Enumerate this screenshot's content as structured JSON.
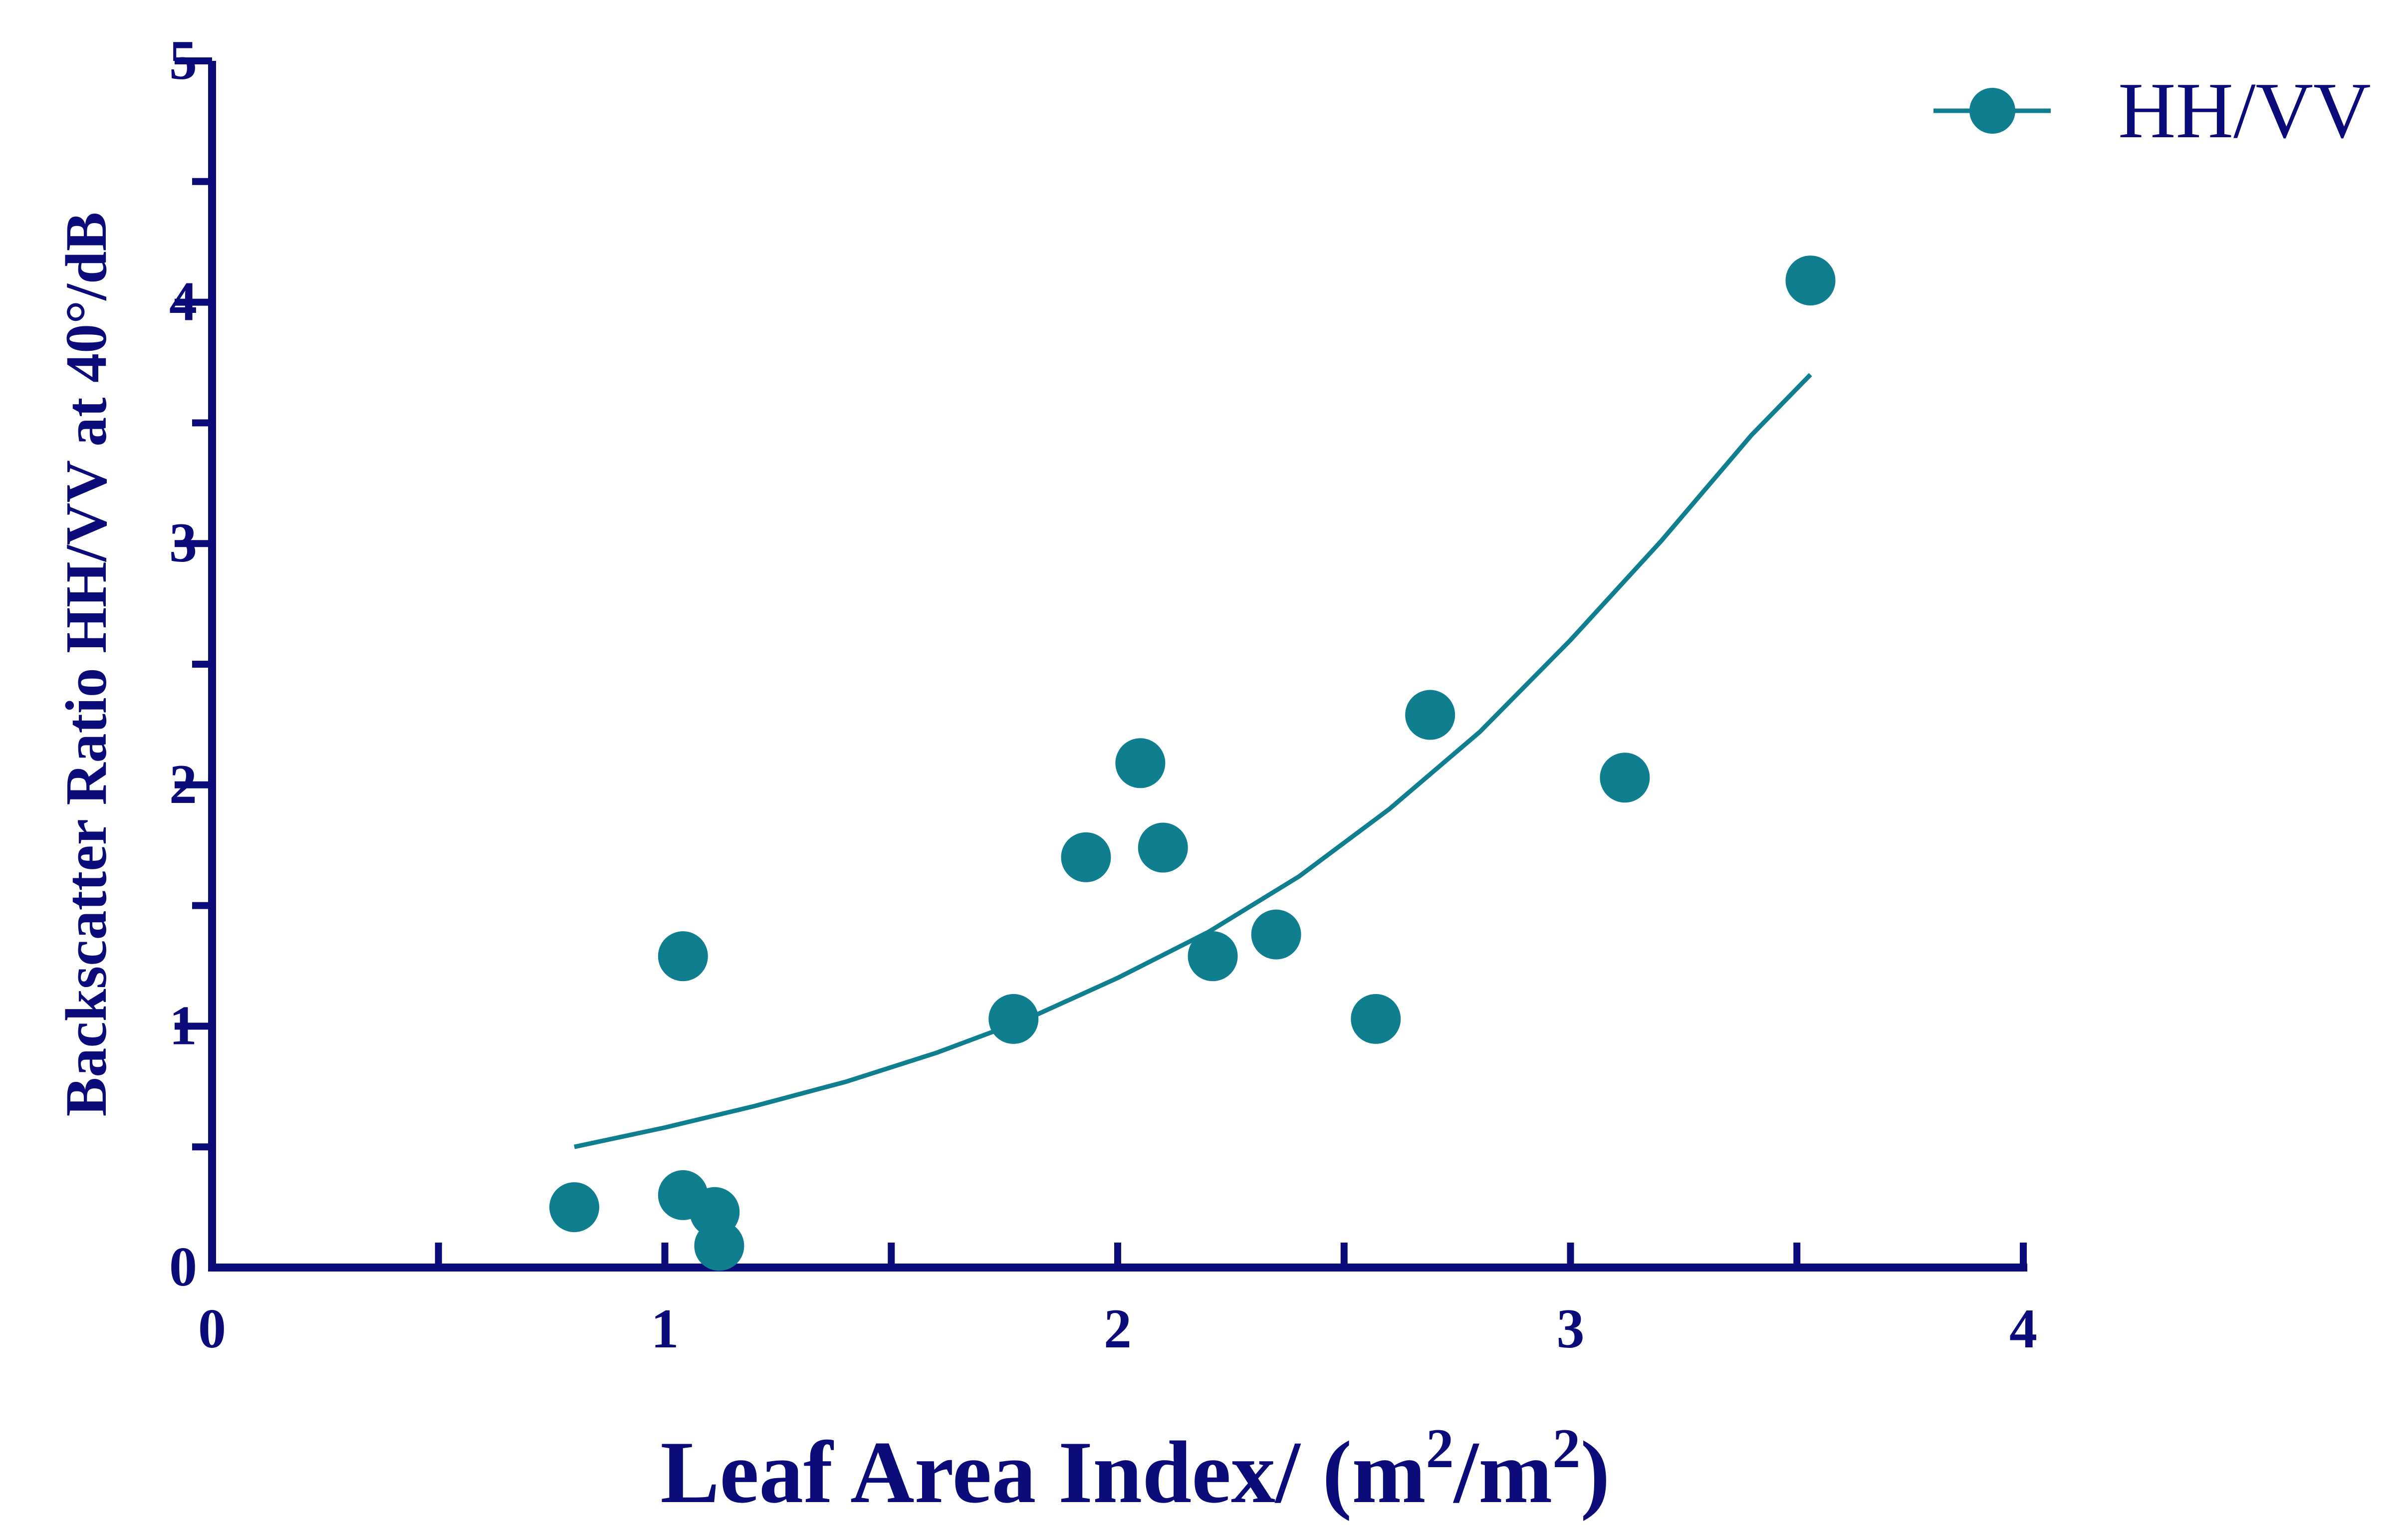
{
  "chart_data": {
    "type": "scatter",
    "xlabel": "Leaf Area Index/ (m",
    "xlabel_sup1": "2",
    "xlabel_mid": "/m",
    "xlabel_sup2": "2",
    "xlabel_end": ")",
    "ylabel": "Backscatter Ratio HH/VV at 40°/dB",
    "xlim": [
      0,
      4
    ],
    "ylim": [
      0,
      5
    ],
    "x_ticks": [
      "0",
      "1",
      "2",
      "3",
      "4"
    ],
    "y_ticks": [
      "0",
      "1",
      "2",
      "3",
      "4",
      "5"
    ],
    "x_minor_step": 0.5,
    "y_minor_step": 0.5,
    "grid": false,
    "legend_position": "top-right",
    "series": [
      {
        "name": "HH/VV",
        "color": "#0f7f8f",
        "points": [
          {
            "x": 0.8,
            "y": 0.25
          },
          {
            "x": 1.04,
            "y": 1.29
          },
          {
            "x": 1.04,
            "y": 0.3
          },
          {
            "x": 1.11,
            "y": 0.23
          },
          {
            "x": 1.12,
            "y": 0.09
          },
          {
            "x": 1.77,
            "y": 1.03
          },
          {
            "x": 1.93,
            "y": 1.7
          },
          {
            "x": 2.05,
            "y": 2.09
          },
          {
            "x": 2.1,
            "y": 1.74
          },
          {
            "x": 2.21,
            "y": 1.29
          },
          {
            "x": 2.35,
            "y": 1.38
          },
          {
            "x": 2.57,
            "y": 1.03
          },
          {
            "x": 2.69,
            "y": 2.29
          },
          {
            "x": 3.12,
            "y": 2.03
          },
          {
            "x": 3.53,
            "y": 4.09
          }
        ]
      }
    ],
    "fit_curve": {
      "color": "#0f7f8f",
      "x_range": [
        0.8,
        3.53
      ],
      "points": [
        {
          "x": 0.8,
          "y": 0.5
        },
        {
          "x": 1.0,
          "y": 0.58
        },
        {
          "x": 1.2,
          "y": 0.67
        },
        {
          "x": 1.4,
          "y": 0.77
        },
        {
          "x": 1.6,
          "y": 0.89
        },
        {
          "x": 1.8,
          "y": 1.03
        },
        {
          "x": 2.0,
          "y": 1.2
        },
        {
          "x": 2.2,
          "y": 1.39
        },
        {
          "x": 2.4,
          "y": 1.62
        },
        {
          "x": 2.6,
          "y": 1.9
        },
        {
          "x": 2.8,
          "y": 2.22
        },
        {
          "x": 3.0,
          "y": 2.6
        },
        {
          "x": 3.2,
          "y": 3.01
        },
        {
          "x": 3.4,
          "y": 3.45
        },
        {
          "x": 3.53,
          "y": 3.7
        }
      ]
    },
    "axis_color": "#0b0b7a",
    "text_color": "#0b0b7a"
  }
}
